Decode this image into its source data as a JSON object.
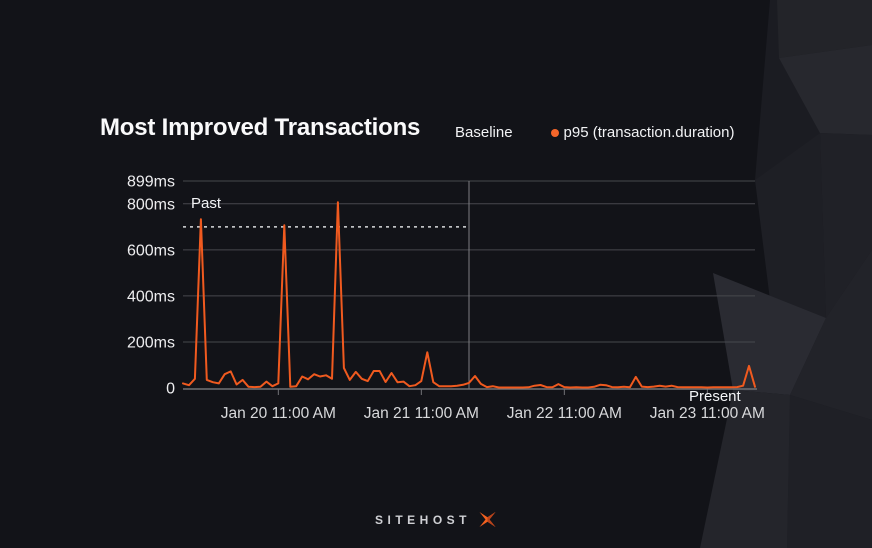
{
  "title": "Most Improved Transactions",
  "legend": {
    "baseline_label": "Baseline",
    "series_label": "p95 (transaction.duration)"
  },
  "footer": {
    "logo_text": "SITEHOST",
    "logo_icon": "x-mark-icon"
  },
  "colors": {
    "background": "#121318",
    "line": "#f05a1f",
    "legend_dot": "#f4662a",
    "gridline": "#47484d",
    "axis_line": "#717276",
    "divider_line": "#7d7e82",
    "baseline_dotted": "#d9dadc",
    "axis_label": "#d8d9db",
    "y_label": "#ededef"
  },
  "chart_data": {
    "type": "line",
    "title": "Most Improved Transactions",
    "unit": "ms",
    "series": [
      {
        "name": "p95 (transaction.duration)",
        "interval": "hourly",
        "values_ms": [
          20,
          12,
          40,
          733,
          35,
          25,
          20,
          60,
          72,
          15,
          35,
          5,
          4,
          5,
          28,
          8,
          20,
          707,
          5,
          8,
          50,
          38,
          60,
          50,
          55,
          40,
          807,
          87,
          35,
          70,
          40,
          30,
          74,
          74,
          26,
          65,
          25,
          28,
          8,
          12,
          30,
          155,
          25,
          8,
          8,
          8,
          10,
          14,
          22,
          52,
          18,
          4,
          8,
          2,
          2,
          2,
          2,
          2,
          3,
          10,
          13,
          4,
          3,
          17,
          4,
          2,
          3,
          2,
          2,
          5,
          14,
          12,
          4,
          3,
          5,
          3,
          48,
          6,
          4,
          6,
          10,
          6,
          10,
          4,
          3,
          3,
          3,
          3,
          2,
          3,
          3,
          3,
          3,
          4,
          10,
          96,
          5
        ]
      }
    ],
    "baseline_ms": 700,
    "baseline_span_hours": [
      0,
      48
    ],
    "divider_hour": 48,
    "total_hours": 96,
    "past_label": "Past",
    "present_label": "Present",
    "y_axis": {
      "tick_values": [
        899,
        800,
        600,
        400,
        200,
        0
      ],
      "tick_labels": [
        "899ms",
        "800ms",
        "600ms",
        "400ms",
        "200ms",
        "0"
      ],
      "max": 899,
      "grid": true
    },
    "x_axis": {
      "tick_hours": [
        16,
        40,
        64,
        88
      ],
      "tick_labels": [
        "Jan 20 11:00 AM",
        "Jan 21 11:00 AM",
        "Jan 22 11:00 AM",
        "Jan 23 11:00 AM"
      ]
    }
  }
}
